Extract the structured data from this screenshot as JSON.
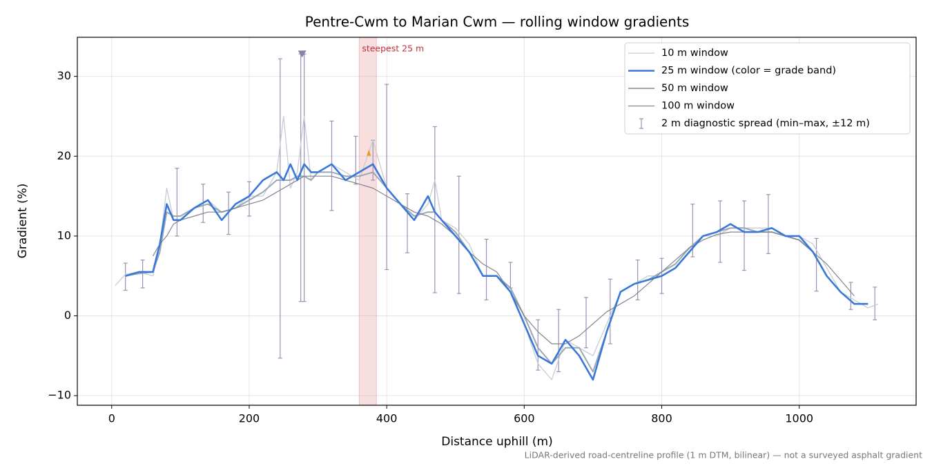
{
  "chart_data": {
    "type": "line",
    "title": "Pentre-Cwm to Marian Cwm — rolling window gradients",
    "xlabel": "Distance uphill (m)",
    "ylabel": "Gradient (%)",
    "footer": "LiDAR-derived road-centreline profile (1 m DTM, bilinear) — not a surveyed asphalt gradient",
    "xlim": [
      -50,
      1170
    ],
    "ylim": [
      -11.2,
      34.9
    ],
    "xticks": [
      0,
      200,
      400,
      600,
      800,
      1000
    ],
    "yticks": [
      {
        "value": -10,
        "label": "−10"
      },
      0,
      10,
      20,
      30
    ],
    "grid": true,
    "legend": "upper right",
    "x": [
      5,
      20,
      40,
      60,
      70,
      80,
      90,
      100,
      120,
      140,
      160,
      180,
      200,
      220,
      240,
      250,
      260,
      270,
      280,
      290,
      300,
      320,
      340,
      360,
      380,
      400,
      420,
      440,
      460,
      470,
      480,
      500,
      520,
      540,
      560,
      580,
      600,
      620,
      640,
      660,
      680,
      700,
      720,
      740,
      760,
      780,
      800,
      820,
      840,
      860,
      880,
      900,
      920,
      940,
      960,
      980,
      1000,
      1020,
      1040,
      1060,
      1080,
      1100,
      1115
    ],
    "series": [
      {
        "name": "10 m window",
        "color": "#c5ccd4",
        "width": 1.3,
        "values": [
          3.8,
          5.2,
          5.5,
          5,
          9,
          16,
          12,
          12,
          13.5,
          14.5,
          13,
          13.5,
          15,
          15,
          18,
          25,
          16,
          18,
          25,
          17,
          18,
          19,
          18,
          17,
          22,
          16,
          14,
          12,
          14,
          17,
          12,
          11,
          9,
          5,
          5,
          3,
          -1,
          -6,
          -8,
          -3,
          -4,
          -5,
          -1,
          3,
          4,
          5,
          5,
          6,
          8,
          10,
          10,
          11,
          11,
          11,
          11,
          10,
          10,
          9,
          6,
          3,
          2,
          1,
          1.5
        ]
      },
      {
        "name": "50 m window",
        "color": "#9aa6b4",
        "width": 2,
        "values": [
          null,
          5,
          5.3,
          5.5,
          8,
          13,
          12.5,
          12.5,
          13.5,
          14,
          13,
          13.5,
          14.5,
          15.5,
          17,
          17,
          17,
          17.5,
          17.5,
          17,
          18,
          18,
          17.5,
          17.5,
          18,
          16,
          14,
          12.5,
          13,
          13,
          12,
          10.5,
          8,
          5,
          5,
          3.5,
          0,
          -4,
          -6,
          -4,
          -4,
          -7,
          -2,
          3,
          4,
          4.5,
          5.5,
          6.5,
          8.5,
          10,
          10.5,
          11,
          11,
          10.5,
          10.5,
          10,
          9.5,
          8,
          5,
          3,
          1.5,
          1.5,
          null
        ]
      },
      {
        "name": "100 m window",
        "color": "#7d8490",
        "width": 1.2,
        "values": [
          null,
          null,
          null,
          7.5,
          9,
          10,
          11.5,
          12,
          12.5,
          13,
          13,
          13.5,
          14,
          14.5,
          15.5,
          16,
          16.5,
          17,
          17.5,
          17.5,
          17.5,
          17.5,
          17,
          16.5,
          16,
          15,
          14,
          13,
          12.5,
          12,
          11.5,
          10,
          8,
          6.5,
          5.5,
          3,
          0,
          -2,
          -3.5,
          -3.5,
          -2.5,
          -1,
          0.5,
          1.5,
          2.5,
          4,
          5.5,
          7,
          8.5,
          9.5,
          10.2,
          10.5,
          10.5,
          10.5,
          10.5,
          10,
          9.5,
          8,
          6.5,
          4.5,
          2.5,
          null,
          null
        ]
      },
      {
        "name": "25 m window (color = grade band)",
        "color": "#3a78d8",
        "width": 2.6,
        "values": [
          null,
          5,
          5.5,
          5.5,
          9,
          14,
          12,
          12,
          13.5,
          14.5,
          12,
          14,
          15,
          17,
          18,
          17,
          19,
          17,
          19,
          18,
          18,
          19,
          17,
          18,
          19,
          16,
          14,
          12,
          15,
          13,
          12,
          10,
          8,
          5,
          5,
          3,
          -1,
          -5,
          -6,
          -3,
          -5,
          -8,
          -2,
          3,
          4,
          4.5,
          5,
          6,
          8,
          10,
          10.5,
          11.5,
          10.5,
          10.5,
          11,
          10,
          10,
          8,
          5,
          3,
          1.5,
          1.5,
          null
        ]
      }
    ],
    "errorbars": {
      "name": "2 m diagnostic spread (min–max, ±12 m)",
      "color": "#9a90b5",
      "x": [
        20,
        45,
        95,
        133,
        170,
        200,
        245,
        275,
        280,
        320,
        355,
        380,
        400,
        430,
        470,
        505,
        545,
        580,
        620,
        650,
        690,
        725,
        765,
        800,
        845,
        885,
        920,
        955,
        1025,
        1075,
        1110
      ],
      "low": [
        3.2,
        3.5,
        10,
        11.7,
        10.2,
        12.5,
        -5.3,
        1.8,
        1.8,
        13.2,
        16.5,
        17,
        5.8,
        7.9,
        2.9,
        2.8,
        2,
        3.5,
        -6.8,
        -7,
        -4,
        -3.5,
        2,
        2.8,
        7.4,
        6.7,
        5.7,
        7.8,
        3.1,
        0.8,
        -0.5
      ],
      "high": [
        6.6,
        7,
        18.5,
        16.5,
        15.5,
        16.8,
        32.2,
        32.8,
        32.8,
        24.4,
        22.5,
        22,
        29,
        15.3,
        23.7,
        17.5,
        9.6,
        6.7,
        -0.5,
        0.8,
        2.3,
        4.6,
        7,
        7.2,
        14,
        14.4,
        14.4,
        15.2,
        9.7,
        4.2,
        3.6
      ]
    },
    "span": {
      "x": [
        360,
        385
      ],
      "label": "steepest 25 m",
      "color": "#e8a0a4"
    },
    "markers": [
      {
        "x": 277,
        "y": 32.8,
        "color": "#8a7fa8"
      },
      {
        "x": 374,
        "y": 20.4,
        "color": "#e89a1a"
      }
    ]
  }
}
